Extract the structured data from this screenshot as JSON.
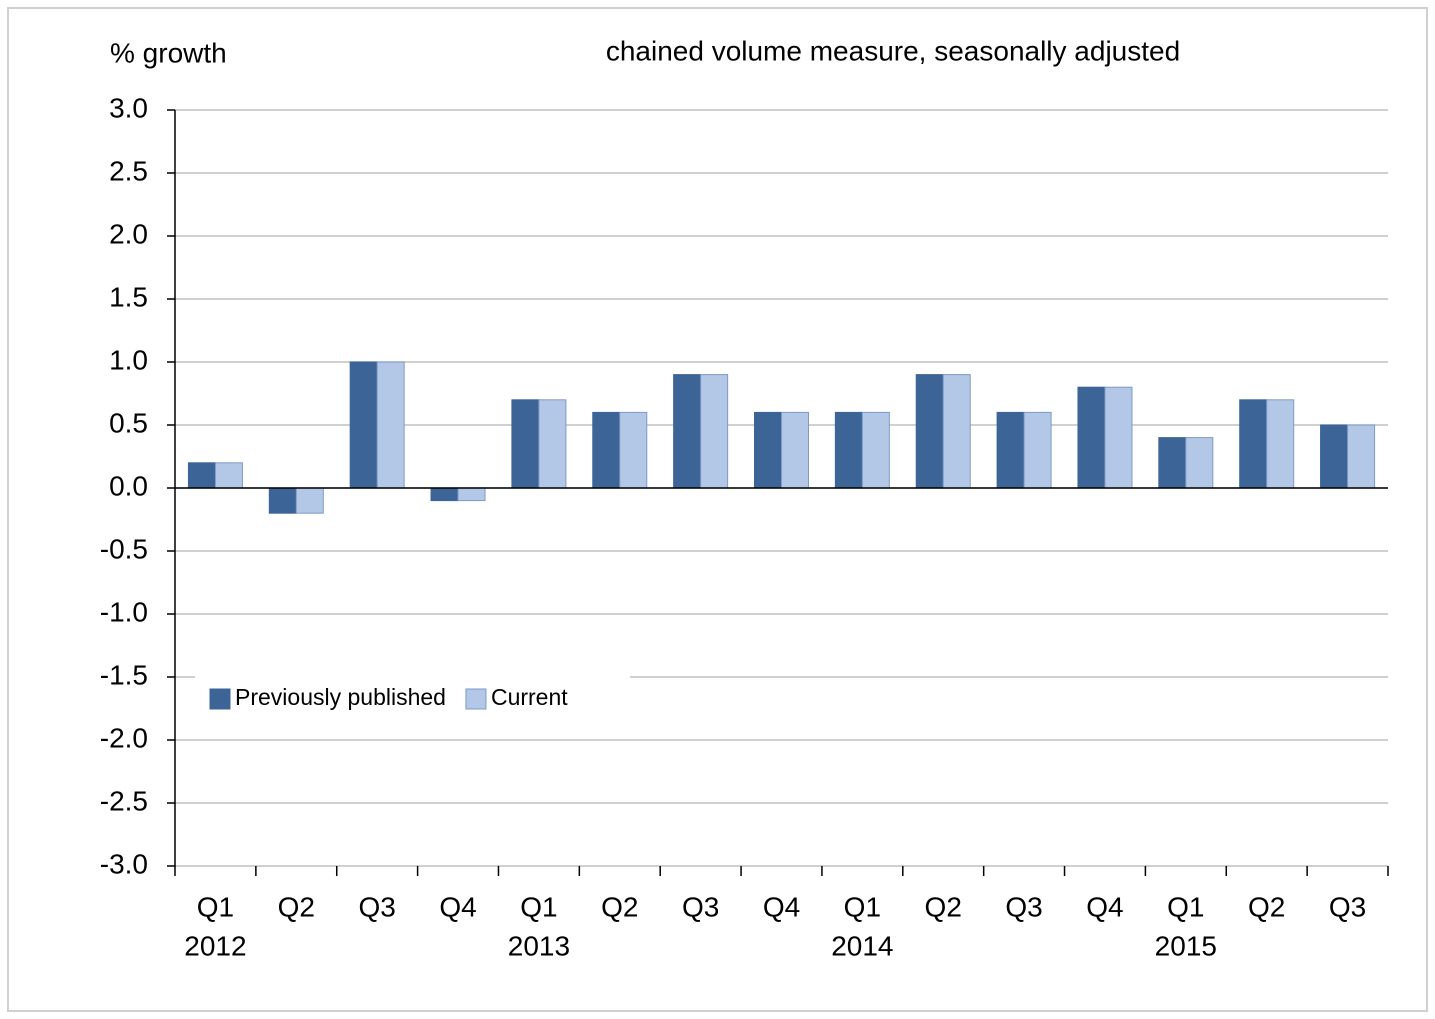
{
  "chart_data": {
    "type": "bar",
    "y_label": "% growth",
    "subtitle": "chained volume measure, seasonally adjusted",
    "categories": [
      "Q1",
      "Q2",
      "Q3",
      "Q4",
      "Q1",
      "Q2",
      "Q3",
      "Q4",
      "Q1",
      "Q2",
      "Q3",
      "Q4",
      "Q1",
      "Q2",
      "Q3"
    ],
    "years": [
      "2012",
      null,
      null,
      null,
      "2013",
      null,
      null,
      null,
      "2014",
      null,
      null,
      null,
      "2015",
      null,
      null
    ],
    "series": [
      {
        "name": "Previously published",
        "color": "#3d6496",
        "values": [
          0.2,
          -0.2,
          1.0,
          -0.1,
          0.7,
          0.6,
          0.9,
          0.6,
          0.6,
          0.9,
          0.6,
          0.8,
          0.4,
          0.7,
          0.5
        ]
      },
      {
        "name": "Current",
        "color": "#b3c7e6",
        "values": [
          0.2,
          -0.2,
          1.0,
          -0.1,
          0.7,
          0.6,
          0.9,
          0.6,
          0.6,
          0.9,
          0.6,
          0.8,
          0.4,
          0.7,
          0.5
        ]
      }
    ],
    "ylim": [
      -3,
      3
    ],
    "yticks": [
      {
        "value": 3,
        "label": "3.0"
      },
      2.5,
      {
        "value": 2,
        "label": "2.0"
      },
      1.5,
      {
        "value": 1,
        "label": "1.0"
      },
      0.5,
      {
        "value": 0,
        "label": "0.0"
      },
      -0.5,
      {
        "value": -1,
        "label": "-1.0"
      },
      -1.5,
      {
        "value": -2,
        "label": "-2.0"
      },
      -2.5,
      {
        "value": -3,
        "label": "-3.0"
      }
    ],
    "grid": true,
    "legend": "lower left"
  }
}
